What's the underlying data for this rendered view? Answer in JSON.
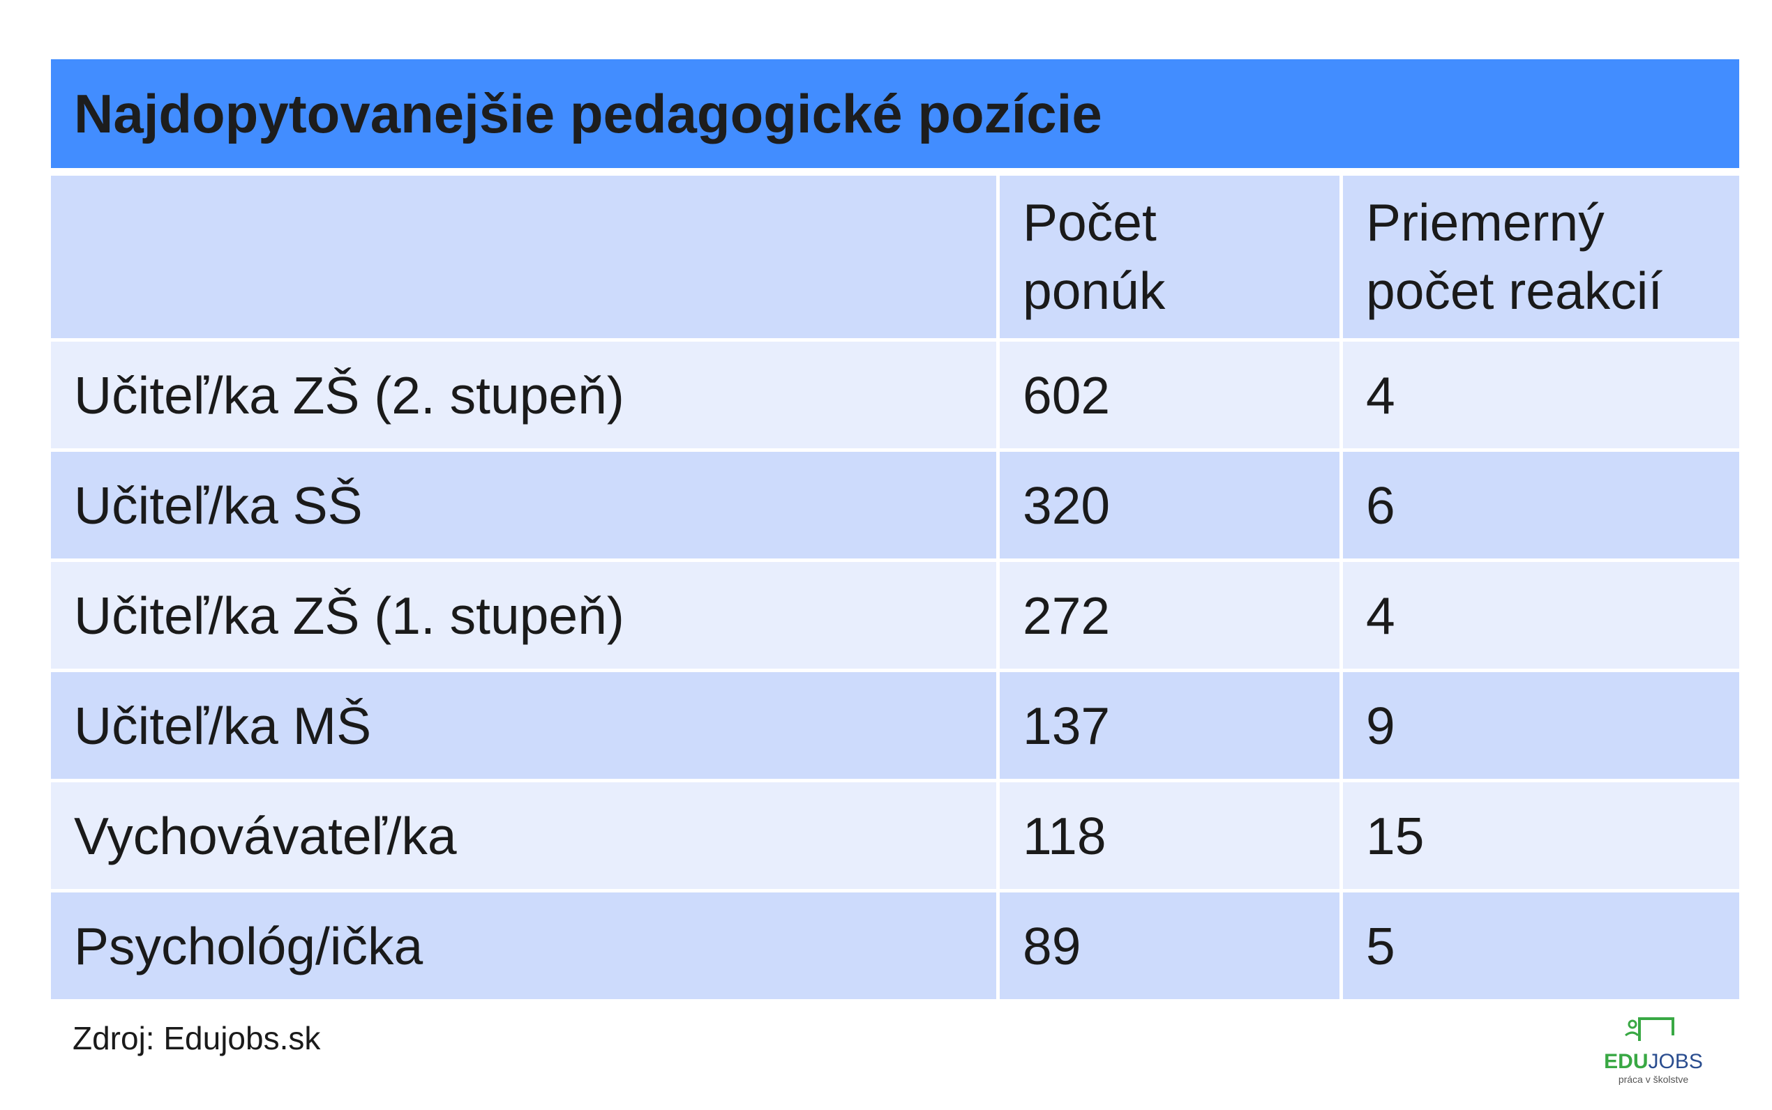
{
  "title": "Najdopytovanejšie pedagogické pozície",
  "table": {
    "header": [
      "Počet ponúk",
      "Priemerný počet reakcií"
    ],
    "rows": [
      [
        "Učiteľ/ka ZŠ (2. stupeň)",
        602,
        4
      ],
      [
        "Učiteľ/ka SŠ",
        320,
        6
      ],
      [
        "Učiteľ/ka ZŠ (1. stupeň)",
        272,
        4
      ],
      [
        "Učiteľ/ka MŠ",
        137,
        9
      ],
      [
        "Vychovávateľ/ka",
        118,
        15
      ],
      [
        "Psychológ/ička",
        89,
        5
      ]
    ]
  },
  "source": "Zdroj: Edujobs.sk",
  "logo": {
    "edu": "EDU",
    "jobs": "JOBS",
    "tagline": "práca v školstve"
  }
}
